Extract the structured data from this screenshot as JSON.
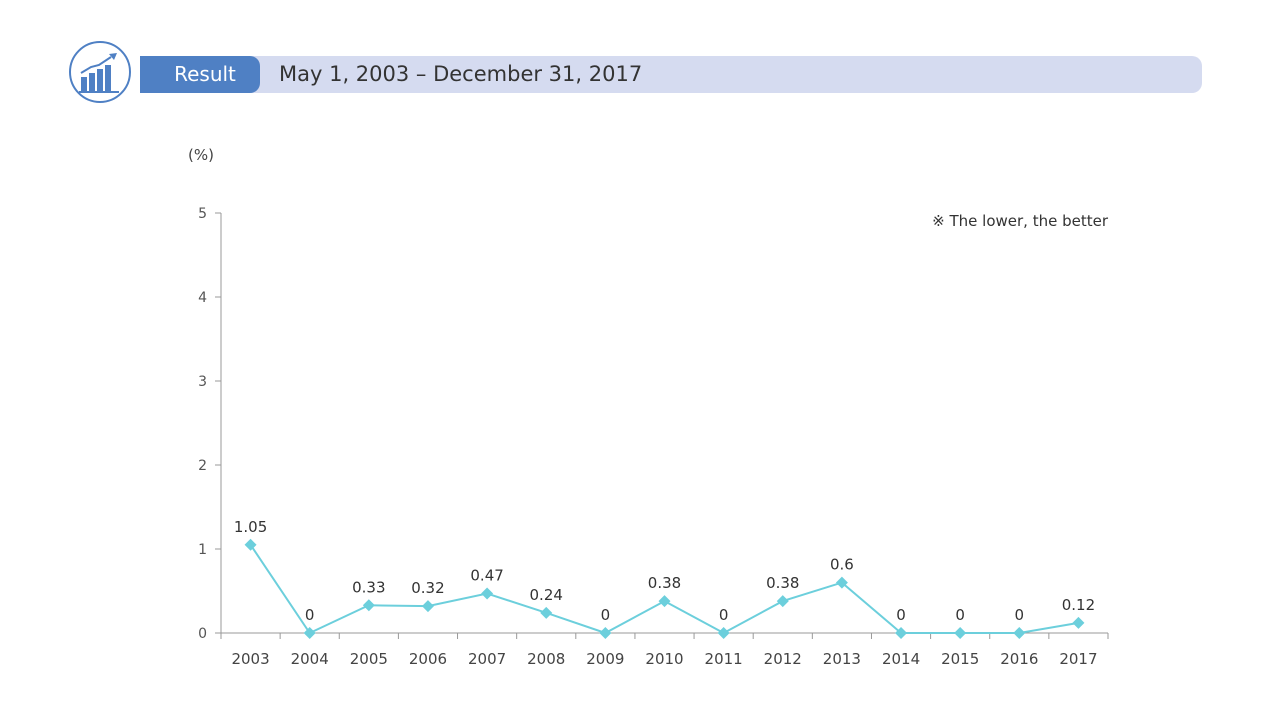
{
  "header": {
    "tab_label": "Result",
    "title": "May 1, 2003 – December 31, 2017",
    "icon": "growth-chart-icon",
    "accent": "#4f80c4",
    "bar_color": "#d5dbf0"
  },
  "chart_data": {
    "type": "line",
    "ylabel": "(%)",
    "note": "※ The lower, the better",
    "categories": [
      "2003",
      "2004",
      "2005",
      "2006",
      "2007",
      "2008",
      "2009",
      "2010",
      "2011",
      "2012",
      "2013",
      "2014",
      "2015",
      "2016",
      "2017"
    ],
    "values": [
      1.05,
      0,
      0.33,
      0.32,
      0.47,
      0.24,
      0,
      0.38,
      0,
      0.38,
      0.6,
      0,
      0,
      0,
      0.12
    ],
    "ylim": [
      0,
      5
    ],
    "yticks": [
      0,
      1,
      2,
      3,
      4,
      5
    ],
    "grid": false,
    "line_color": "#6ccfdc",
    "marker": "diamond"
  }
}
